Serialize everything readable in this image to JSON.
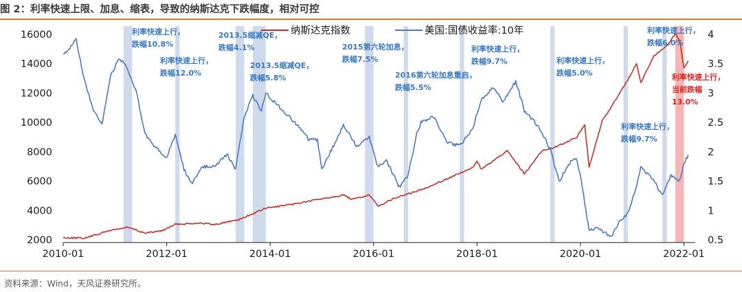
{
  "title": "图 2：利率快速上限、加息、缩表，导致的纳斯达克下跌幅度，相对可控",
  "source": "资料来源：Wind，天风证券研究所。",
  "chart_data": {
    "type": "line",
    "x_ticks": [
      "2010-01",
      "2012-01",
      "2014-01",
      "2016-01",
      "2018-01",
      "2020-01",
      "2022-01"
    ],
    "x_range": [
      "2010-01",
      "2022-03"
    ],
    "y_left": {
      "ticks": [
        "16000",
        "14000",
        "12000",
        "10000",
        "8000",
        "6000",
        "4000",
        "2000"
      ],
      "range": [
        2000,
        16000
      ]
    },
    "y_right": {
      "ticks": [
        "4",
        "3.5",
        "3",
        "2.5",
        "2",
        "1.5",
        "1",
        "0.5"
      ],
      "range": [
        0.5,
        4
      ]
    },
    "grid": false,
    "legend": {
      "position": "top-center",
      "items": [
        {
          "name": "纳斯达克指数",
          "color": "#c0302c"
        },
        {
          "name": "美国:国债收益率:10年",
          "color": "#4a78bf"
        }
      ]
    },
    "series": [
      {
        "name": "纳斯达克指数",
        "axis": "left",
        "color": "#c0302c",
        "points": [
          [
            "2010-01",
            2150
          ],
          [
            "2010-06",
            2110
          ],
          [
            "2010-12",
            2650
          ],
          [
            "2011-04",
            2850
          ],
          [
            "2011-08",
            2450
          ],
          [
            "2011-12",
            2620
          ],
          [
            "2012-03",
            3050
          ],
          [
            "2012-09",
            3150
          ],
          [
            "2012-12",
            3020
          ],
          [
            "2013-06",
            3400
          ],
          [
            "2013-12",
            4150
          ],
          [
            "2014-06",
            4400
          ],
          [
            "2014-12",
            4750
          ],
          [
            "2015-06",
            5050
          ],
          [
            "2015-08",
            4750
          ],
          [
            "2015-12",
            5050
          ],
          [
            "2016-02",
            4300
          ],
          [
            "2016-06",
            4850
          ],
          [
            "2016-12",
            5400
          ],
          [
            "2017-06",
            6150
          ],
          [
            "2017-12",
            6900
          ],
          [
            "2018-01",
            7400
          ],
          [
            "2018-02",
            6800
          ],
          [
            "2018-08",
            8050
          ],
          [
            "2018-12",
            6500
          ],
          [
            "2019-04",
            8050
          ],
          [
            "2019-07",
            8300
          ],
          [
            "2019-12",
            8950
          ],
          [
            "2020-02",
            9800
          ],
          [
            "2020-03",
            6950
          ],
          [
            "2020-06",
            10050
          ],
          [
            "2020-12",
            12900
          ],
          [
            "2021-02",
            14000
          ],
          [
            "2021-03",
            12700
          ],
          [
            "2021-06",
            14500
          ],
          [
            "2021-09",
            15200
          ],
          [
            "2021-11",
            16050
          ],
          [
            "2021-12",
            15600
          ],
          [
            "2022-01",
            13700
          ],
          [
            "2022-02",
            14200
          ]
        ]
      },
      {
        "name": "美国:国债收益率:10年",
        "axis": "right",
        "color": "#4a78bf",
        "points": [
          [
            "2010-01",
            3.65
          ],
          [
            "2010-04",
            3.9
          ],
          [
            "2010-06",
            3.2
          ],
          [
            "2010-08",
            2.7
          ],
          [
            "2010-10",
            2.45
          ],
          [
            "2010-12",
            3.3
          ],
          [
            "2011-02",
            3.6
          ],
          [
            "2011-04",
            3.4
          ],
          [
            "2011-06",
            3.0
          ],
          [
            "2011-08",
            2.3
          ],
          [
            "2011-10",
            2.1
          ],
          [
            "2011-12",
            1.95
          ],
          [
            "2012-01",
            1.9
          ],
          [
            "2012-03",
            2.3
          ],
          [
            "2012-05",
            1.7
          ],
          [
            "2012-07",
            1.45
          ],
          [
            "2012-09",
            1.75
          ],
          [
            "2012-12",
            1.75
          ],
          [
            "2013-03",
            1.95
          ],
          [
            "2013-05",
            1.7
          ],
          [
            "2013-07",
            2.6
          ],
          [
            "2013-09",
            2.95
          ],
          [
            "2013-11",
            2.7
          ],
          [
            "2013-12",
            3.0
          ],
          [
            "2014-04",
            2.7
          ],
          [
            "2014-08",
            2.4
          ],
          [
            "2014-10",
            2.2
          ],
          [
            "2014-12",
            2.2
          ],
          [
            "2015-01",
            1.7
          ],
          [
            "2015-03",
            2.0
          ],
          [
            "2015-06",
            2.45
          ],
          [
            "2015-09",
            2.1
          ],
          [
            "2015-12",
            2.25
          ],
          [
            "2016-02",
            1.75
          ],
          [
            "2016-04",
            1.85
          ],
          [
            "2016-07",
            1.4
          ],
          [
            "2016-09",
            1.6
          ],
          [
            "2016-11",
            2.3
          ],
          [
            "2016-12",
            2.5
          ],
          [
            "2017-03",
            2.6
          ],
          [
            "2017-06",
            2.15
          ],
          [
            "2017-09",
            2.1
          ],
          [
            "2017-12",
            2.4
          ],
          [
            "2018-02",
            2.9
          ],
          [
            "2018-05",
            3.1
          ],
          [
            "2018-07",
            2.85
          ],
          [
            "2018-10",
            3.2
          ],
          [
            "2018-12",
            2.7
          ],
          [
            "2019-03",
            2.45
          ],
          [
            "2019-06",
            2.05
          ],
          [
            "2019-08",
            1.5
          ],
          [
            "2019-11",
            1.85
          ],
          [
            "2019-12",
            1.9
          ],
          [
            "2020-01",
            1.6
          ],
          [
            "2020-03",
            0.65
          ],
          [
            "2020-05",
            0.7
          ],
          [
            "2020-08",
            0.55
          ],
          [
            "2020-10",
            0.8
          ],
          [
            "2020-12",
            0.95
          ],
          [
            "2021-02",
            1.4
          ],
          [
            "2021-03",
            1.75
          ],
          [
            "2021-06",
            1.5
          ],
          [
            "2021-08",
            1.25
          ],
          [
            "2021-10",
            1.6
          ],
          [
            "2021-12",
            1.5
          ],
          [
            "2022-01",
            1.8
          ],
          [
            "2022-02",
            1.95
          ]
        ]
      }
    ],
    "shaded_periods": [
      {
        "start": "2011-03",
        "end": "2011-05",
        "color": "#c7d5ea"
      },
      {
        "start": "2012-03",
        "end": "2012-04",
        "color": "#c7d5ea"
      },
      {
        "start": "2013-05",
        "end": "2013-07",
        "color": "#c7d5ea"
      },
      {
        "start": "2013-09",
        "end": "2013-12",
        "color": "#c7d5ea"
      },
      {
        "start": "2015-11",
        "end": "2016-01",
        "color": "#c7d5ea"
      },
      {
        "start": "2016-08",
        "end": "2016-09",
        "color": "#c7d5ea"
      },
      {
        "start": "2017-09",
        "end": "2017-10",
        "color": "#c7d5ea"
      },
      {
        "start": "2019-06",
        "end": "2019-07",
        "color": "#c7d5ea"
      },
      {
        "start": "2020-11",
        "end": "2020-12",
        "color": "#c7d5ea"
      },
      {
        "start": "2021-08",
        "end": "2021-09",
        "color": "#c7d5ea"
      },
      {
        "start": "2021-11",
        "end": "2022-01",
        "color": "#f4a9a8"
      }
    ],
    "annotations": [
      {
        "lines": [
          "利率快速上行，",
          "跌幅10.8%"
        ],
        "color": "#3a78c0"
      },
      {
        "lines": [
          "利率快速上行，",
          "跌幅12.0%"
        ],
        "color": "#3a78c0"
      },
      {
        "lines": [
          "2013.5缩减QE，",
          "跌幅4.1%"
        ],
        "color": "#3a78c0"
      },
      {
        "lines": [
          "2013.5缩减QE，",
          "跌幅5.8%"
        ],
        "color": "#3a78c0"
      },
      {
        "lines": [
          "2015第六轮加息，",
          "跌幅7.5%"
        ],
        "color": "#3a78c0"
      },
      {
        "lines": [
          "2016第六轮加息重启，",
          "跌幅5.5%"
        ],
        "color": "#3a78c0"
      },
      {
        "lines": [
          "利率快速上行，",
          "跌幅9.7%"
        ],
        "color": "#3a78c0"
      },
      {
        "lines": [
          "利率快速上行，",
          "跌幅5.0%"
        ],
        "color": "#3a78c0"
      },
      {
        "lines": [
          "利率快速上行，",
          "跌幅9.7%"
        ],
        "color": "#3a78c0"
      },
      {
        "lines": [
          "利率快速上行，",
          "跌幅6.0%"
        ],
        "color": "#3a78c0"
      },
      {
        "lines": [
          "利率快速上行，",
          "当前跌幅",
          "13.0%"
        ],
        "color": "#e02020"
      }
    ]
  }
}
